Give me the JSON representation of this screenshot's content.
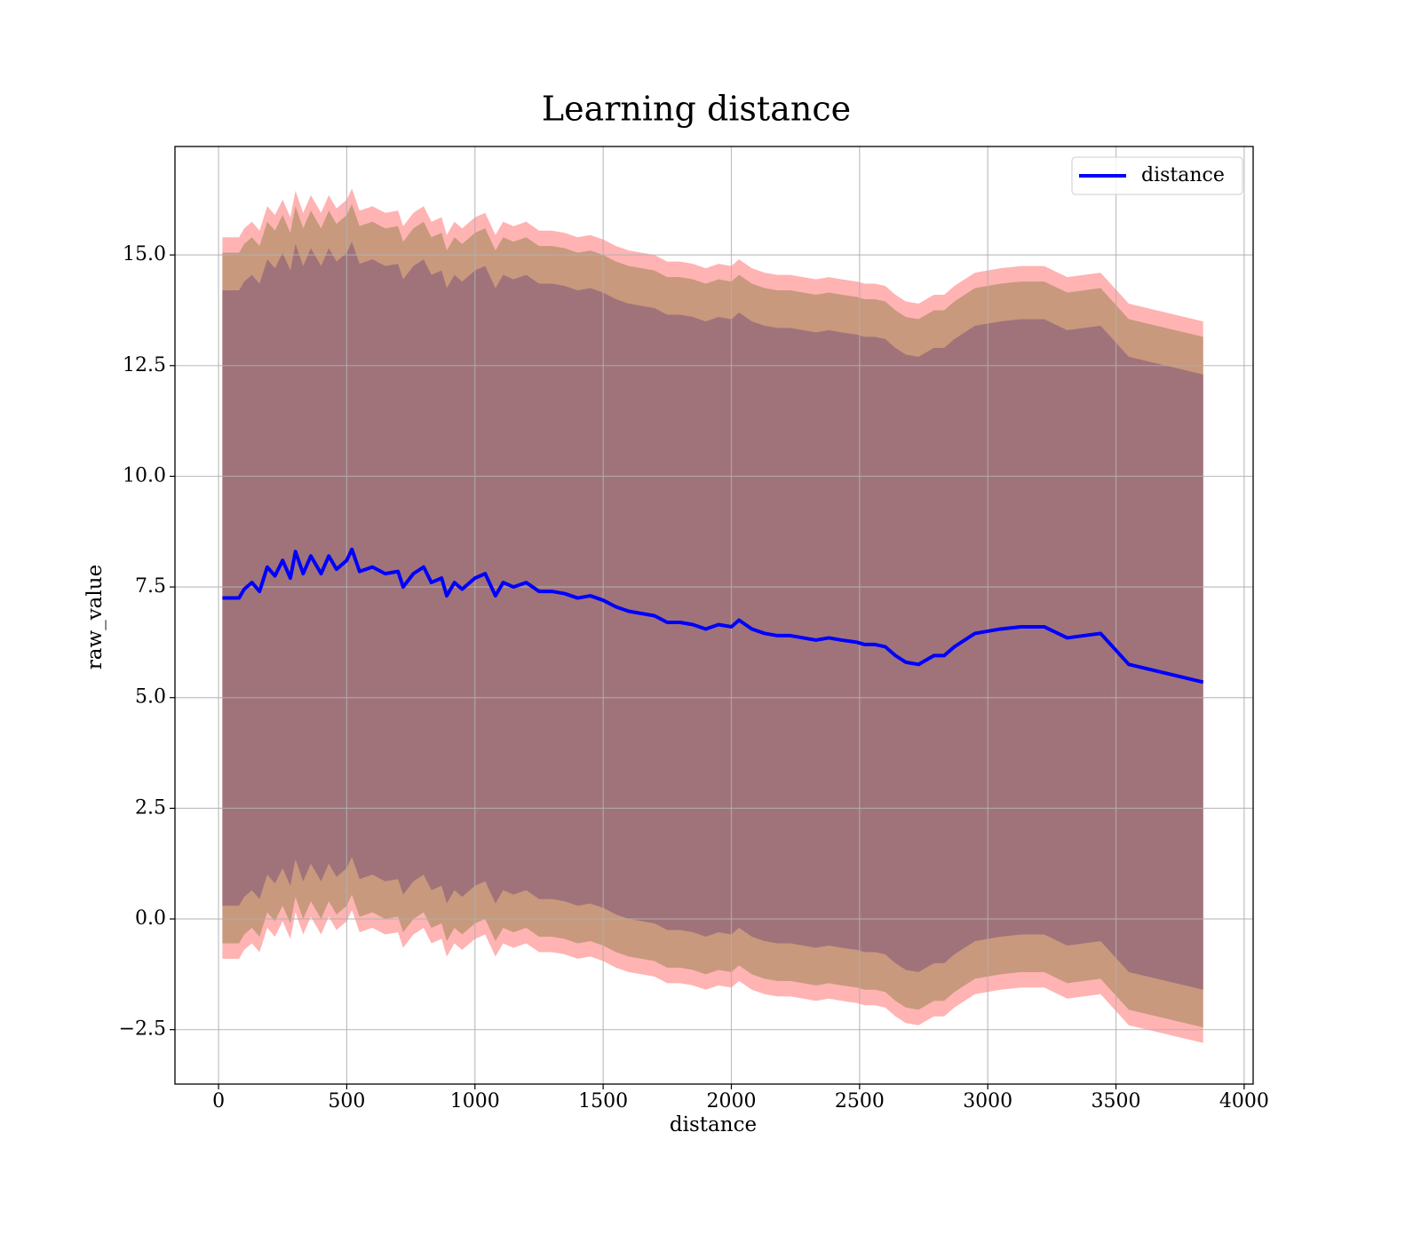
{
  "chart_data": {
    "type": "line",
    "title": "Learning distance",
    "x_label": "distance",
    "y_label": "raw_value",
    "xlim": [
      -170,
      4035
    ],
    "ylim": [
      -3.73,
      17.45
    ],
    "xticks": [
      0,
      500,
      1000,
      1500,
      2000,
      2500,
      3000,
      3500,
      4000
    ],
    "yticks": [
      {
        "value": -2.5,
        "label": "−2.5"
      },
      {
        "value": 0,
        "label": "0.0"
      },
      {
        "value": 2.5,
        "label": "2.5"
      },
      {
        "value": 5,
        "label": "5.0"
      },
      {
        "value": 7.5,
        "label": "7.5"
      },
      {
        "value": 10,
        "label": "10.0"
      },
      {
        "value": 12.5,
        "label": "12.5"
      },
      {
        "value": 15,
        "label": "15.0"
      }
    ],
    "grid": true,
    "legend": "upper right",
    "x": [
      15,
      50,
      80,
      100,
      130,
      160,
      190,
      220,
      250,
      280,
      300,
      330,
      360,
      400,
      430,
      460,
      500,
      520,
      550,
      600,
      650,
      700,
      720,
      760,
      800,
      830,
      870,
      890,
      920,
      950,
      1000,
      1040,
      1080,
      1110,
      1150,
      1200,
      1250,
      1300,
      1350,
      1400,
      1450,
      1500,
      1550,
      1600,
      1650,
      1700,
      1750,
      1800,
      1850,
      1900,
      1950,
      2000,
      2030,
      2080,
      2130,
      2180,
      2230,
      2280,
      2330,
      2380,
      2430,
      2490,
      2520,
      2560,
      2600,
      2640,
      2680,
      2730,
      2790,
      2830,
      2870,
      2950,
      3050,
      3130,
      3220,
      3310,
      3440,
      3550,
      3840
    ],
    "series": [
      {
        "name": "distance",
        "color": "#0000ff",
        "values": [
          7.25,
          7.25,
          7.25,
          7.45,
          7.6,
          7.4,
          7.95,
          7.75,
          8.1,
          7.7,
          8.3,
          7.8,
          8.2,
          7.8,
          8.2,
          7.9,
          8.1,
          8.35,
          7.85,
          7.95,
          7.8,
          7.85,
          7.5,
          7.8,
          7.95,
          7.6,
          7.7,
          7.3,
          7.6,
          7.45,
          7.7,
          7.8,
          7.3,
          7.6,
          7.5,
          7.6,
          7.4,
          7.4,
          7.35,
          7.25,
          7.3,
          7.2,
          7.05,
          6.95,
          6.9,
          6.85,
          6.7,
          6.7,
          6.65,
          6.55,
          6.65,
          6.6,
          6.75,
          6.55,
          6.45,
          6.4,
          6.4,
          6.35,
          6.3,
          6.35,
          6.3,
          6.25,
          6.2,
          6.2,
          6.15,
          5.95,
          5.8,
          5.75,
          5.95,
          5.95,
          6.15,
          6.45,
          6.55,
          6.6,
          6.6,
          6.35,
          6.45,
          5.75,
          5.35
        ]
      }
    ],
    "bands": [
      {
        "color": "#ffb3b3",
        "upper": [
          15.4,
          15.4,
          15.4,
          15.6,
          15.75,
          15.55,
          16.1,
          15.9,
          16.25,
          15.85,
          16.45,
          15.95,
          16.35,
          15.95,
          16.35,
          16.05,
          16.25,
          16.5,
          16.0,
          16.1,
          15.95,
          16.0,
          15.65,
          15.95,
          16.1,
          15.75,
          15.85,
          15.45,
          15.75,
          15.6,
          15.85,
          15.95,
          15.45,
          15.75,
          15.65,
          15.75,
          15.55,
          15.55,
          15.5,
          15.4,
          15.45,
          15.35,
          15.2,
          15.1,
          15.05,
          15.0,
          14.85,
          14.85,
          14.8,
          14.7,
          14.8,
          14.75,
          14.9,
          14.7,
          14.6,
          14.55,
          14.55,
          14.5,
          14.45,
          14.5,
          14.45,
          14.4,
          14.35,
          14.35,
          14.3,
          14.1,
          13.95,
          13.9,
          14.1,
          14.1,
          14.3,
          14.6,
          14.7,
          14.75,
          14.75,
          14.5,
          14.6,
          13.9,
          13.5
        ],
        "lower": [
          -0.9,
          -0.9,
          -0.9,
          -0.7,
          -0.55,
          -0.75,
          -0.2,
          -0.4,
          -0.05,
          -0.45,
          0.15,
          -0.35,
          0.05,
          -0.35,
          0.05,
          -0.25,
          -0.05,
          0.2,
          -0.3,
          -0.2,
          -0.35,
          -0.3,
          -0.65,
          -0.35,
          -0.2,
          -0.55,
          -0.45,
          -0.85,
          -0.55,
          -0.7,
          -0.45,
          -0.35,
          -0.85,
          -0.55,
          -0.65,
          -0.55,
          -0.75,
          -0.75,
          -0.8,
          -0.9,
          -0.85,
          -0.95,
          -1.1,
          -1.2,
          -1.25,
          -1.3,
          -1.45,
          -1.45,
          -1.5,
          -1.6,
          -1.5,
          -1.55,
          -1.4,
          -1.6,
          -1.7,
          -1.75,
          -1.75,
          -1.8,
          -1.85,
          -1.8,
          -1.85,
          -1.9,
          -1.95,
          -1.95,
          -2.0,
          -2.2,
          -2.35,
          -2.4,
          -2.2,
          -2.2,
          -2.0,
          -1.7,
          -1.6,
          -1.55,
          -1.55,
          -1.8,
          -1.7,
          -2.4,
          -2.8
        ]
      },
      {
        "color": "#c8997d",
        "upper": [
          15.05,
          15.05,
          15.05,
          15.25,
          15.4,
          15.2,
          15.75,
          15.55,
          15.9,
          15.5,
          16.1,
          15.6,
          16.0,
          15.6,
          16.0,
          15.7,
          15.9,
          16.15,
          15.65,
          15.75,
          15.6,
          15.65,
          15.3,
          15.6,
          15.75,
          15.4,
          15.5,
          15.1,
          15.4,
          15.25,
          15.5,
          15.6,
          15.1,
          15.4,
          15.3,
          15.4,
          15.2,
          15.2,
          15.15,
          15.05,
          15.1,
          15.0,
          14.85,
          14.75,
          14.7,
          14.65,
          14.5,
          14.5,
          14.45,
          14.35,
          14.45,
          14.4,
          14.55,
          14.35,
          14.25,
          14.2,
          14.2,
          14.15,
          14.1,
          14.15,
          14.1,
          14.05,
          14.0,
          14.0,
          13.95,
          13.75,
          13.6,
          13.55,
          13.75,
          13.75,
          13.95,
          14.25,
          14.35,
          14.4,
          14.4,
          14.15,
          14.25,
          13.55,
          13.15
        ],
        "lower": [
          -0.55,
          -0.55,
          -0.55,
          -0.35,
          -0.2,
          -0.4,
          0.15,
          -0.05,
          0.3,
          -0.1,
          0.5,
          0,
          0.4,
          0,
          0.4,
          0.1,
          0.3,
          0.55,
          0.05,
          0.15,
          0,
          0.05,
          -0.3,
          0,
          0.15,
          -0.2,
          -0.1,
          -0.5,
          -0.2,
          -0.35,
          -0.1,
          0,
          -0.5,
          -0.2,
          -0.3,
          -0.2,
          -0.4,
          -0.4,
          -0.45,
          -0.55,
          -0.5,
          -0.6,
          -0.75,
          -0.85,
          -0.9,
          -0.95,
          -1.1,
          -1.1,
          -1.15,
          -1.25,
          -1.15,
          -1.2,
          -1.05,
          -1.25,
          -1.35,
          -1.4,
          -1.4,
          -1.45,
          -1.5,
          -1.45,
          -1.5,
          -1.55,
          -1.6,
          -1.6,
          -1.65,
          -1.85,
          -2.0,
          -2.05,
          -1.85,
          -1.85,
          -1.65,
          -1.35,
          -1.25,
          -1.2,
          -1.2,
          -1.45,
          -1.35,
          -2.05,
          -2.45
        ]
      },
      {
        "color": "#a0737b",
        "upper": [
          14.2,
          14.2,
          14.2,
          14.4,
          14.55,
          14.35,
          14.9,
          14.7,
          15.05,
          14.65,
          15.25,
          14.75,
          15.15,
          14.75,
          15.15,
          14.85,
          15.05,
          15.3,
          14.8,
          14.9,
          14.75,
          14.8,
          14.45,
          14.75,
          14.9,
          14.55,
          14.65,
          14.25,
          14.55,
          14.4,
          14.65,
          14.75,
          14.25,
          14.55,
          14.45,
          14.55,
          14.35,
          14.35,
          14.3,
          14.2,
          14.25,
          14.15,
          14.0,
          13.9,
          13.85,
          13.8,
          13.65,
          13.65,
          13.6,
          13.5,
          13.6,
          13.55,
          13.7,
          13.5,
          13.4,
          13.35,
          13.35,
          13.3,
          13.25,
          13.3,
          13.25,
          13.2,
          13.15,
          13.15,
          13.1,
          12.9,
          12.75,
          12.7,
          12.9,
          12.9,
          13.1,
          13.4,
          13.5,
          13.55,
          13.55,
          13.3,
          13.4,
          12.7,
          12.3
        ],
        "lower": [
          0.3,
          0.3,
          0.3,
          0.5,
          0.65,
          0.45,
          1.0,
          0.8,
          1.15,
          0.75,
          1.35,
          0.85,
          1.25,
          0.85,
          1.25,
          0.95,
          1.15,
          1.4,
          0.9,
          1.0,
          0.85,
          0.9,
          0.55,
          0.85,
          1.0,
          0.65,
          0.75,
          0.35,
          0.65,
          0.5,
          0.75,
          0.85,
          0.35,
          0.65,
          0.55,
          0.65,
          0.45,
          0.45,
          0.4,
          0.3,
          0.35,
          0.25,
          0.1,
          0,
          -0.05,
          -0.1,
          -0.25,
          -0.25,
          -0.3,
          -0.4,
          -0.3,
          -0.35,
          -0.2,
          -0.4,
          -0.5,
          -0.55,
          -0.55,
          -0.6,
          -0.65,
          -0.6,
          -0.65,
          -0.7,
          -0.75,
          -0.75,
          -0.8,
          -1.0,
          -1.15,
          -1.2,
          -1.0,
          -1.0,
          -0.8,
          -0.5,
          -0.4,
          -0.35,
          -0.35,
          -0.6,
          -0.5,
          -1.2,
          -1.6
        ]
      }
    ]
  }
}
